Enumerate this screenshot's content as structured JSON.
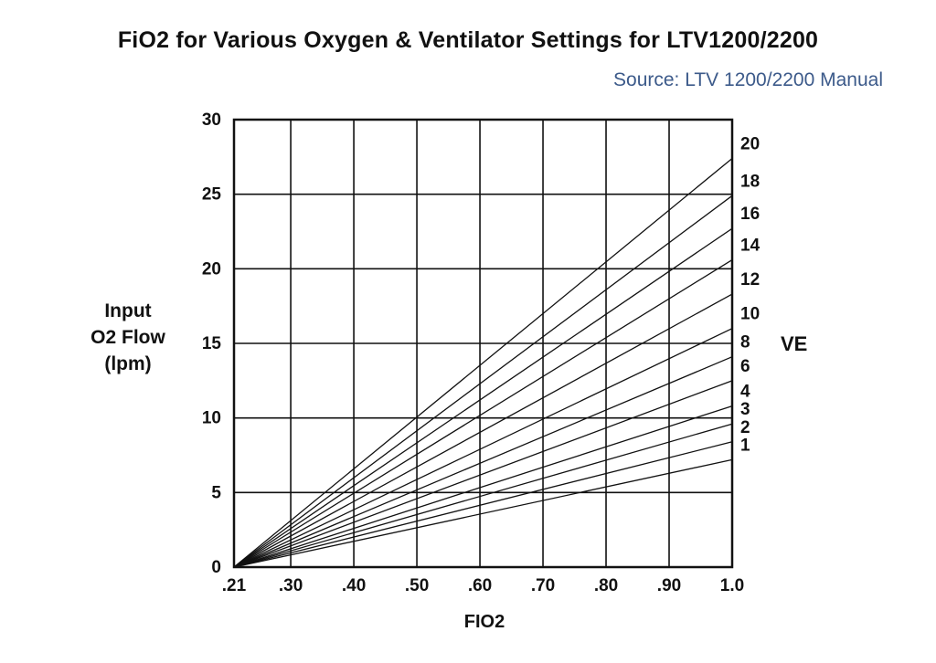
{
  "title": "FiO2 for Various Oxygen & Ventilator Settings for LTV1200/2200",
  "source": "Source: LTV 1200/2200 Manual",
  "ve_axis_label": "VE",
  "chart_data": {
    "type": "line",
    "title": "FiO2 for Various Oxygen & Ventilator Settings for LTV1200/2200",
    "subtitle": "Source: LTV 1200/2200 Manual",
    "xlabel": "FIO2",
    "ylabel": [
      "Input",
      "O2 Flow",
      "(lpm)"
    ],
    "xlim": [
      0.21,
      1.0
    ],
    "ylim": [
      0,
      30
    ],
    "x_ticks": [
      0.21,
      0.3,
      0.4,
      0.5,
      0.6,
      0.7,
      0.8,
      0.9,
      1.0
    ],
    "x_tick_labels": [
      ".21",
      ".30",
      ".40",
      ".50",
      ".60",
      ".70",
      ".80",
      ".90",
      "1.0"
    ],
    "y_ticks": [
      0,
      5,
      10,
      15,
      20,
      25,
      30
    ],
    "y_tick_labels": [
      "0",
      "5",
      "10",
      "15",
      "20",
      "25",
      "30"
    ],
    "grid": true,
    "line_color": "#111111",
    "series": [
      {
        "name": "20",
        "x": [
          0.21,
          1.0
        ],
        "y": [
          0,
          27.4
        ]
      },
      {
        "name": "18",
        "x": [
          0.21,
          1.0
        ],
        "y": [
          0,
          24.9
        ]
      },
      {
        "name": "16",
        "x": [
          0.21,
          1.0
        ],
        "y": [
          0,
          22.7
        ]
      },
      {
        "name": "14",
        "x": [
          0.21,
          1.0
        ],
        "y": [
          0,
          20.6
        ]
      },
      {
        "name": "12",
        "x": [
          0.21,
          1.0
        ],
        "y": [
          0,
          18.3
        ]
      },
      {
        "name": "10",
        "x": [
          0.21,
          1.0
        ],
        "y": [
          0,
          16.0
        ]
      },
      {
        "name": "8",
        "x": [
          0.21,
          1.0
        ],
        "y": [
          0,
          14.1
        ]
      },
      {
        "name": "6",
        "x": [
          0.21,
          1.0
        ],
        "y": [
          0,
          12.5
        ]
      },
      {
        "name": "4",
        "x": [
          0.21,
          1.0
        ],
        "y": [
          0,
          10.8
        ]
      },
      {
        "name": "3",
        "x": [
          0.21,
          1.0
        ],
        "y": [
          0,
          9.6
        ]
      },
      {
        "name": "2",
        "x": [
          0.21,
          1.0
        ],
        "y": [
          0,
          8.4
        ]
      },
      {
        "name": "1",
        "x": [
          0.21,
          1.0
        ],
        "y": [
          0,
          7.2
        ]
      }
    ]
  }
}
